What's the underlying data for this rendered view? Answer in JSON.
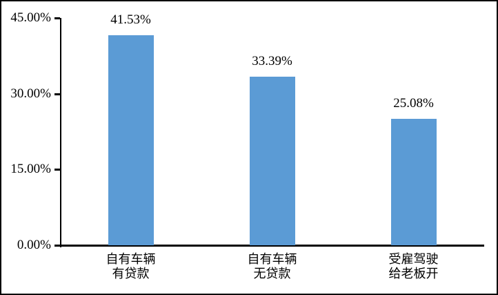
{
  "chart_data": {
    "type": "bar",
    "title": "",
    "xlabel": "",
    "ylabel": "",
    "categories": [
      "自有车辆\n有贷款",
      "自有车辆\n无贷款",
      "受雇驾驶\n给老板开"
    ],
    "values": [
      41.53,
      33.39,
      25.08
    ],
    "data_labels": [
      "41.53%",
      "33.39%",
      "25.08%"
    ],
    "y_ticks": [
      {
        "value": 45,
        "label": "45.00%"
      },
      {
        "value": 30,
        "label": "30.00%"
      },
      {
        "value": 15,
        "label": "15.00%"
      },
      {
        "value": 0,
        "label": "0.00%"
      }
    ],
    "ylim": [
      0,
      45
    ],
    "bar_color": "#5B9BD5",
    "grid": false,
    "legend": "none"
  }
}
